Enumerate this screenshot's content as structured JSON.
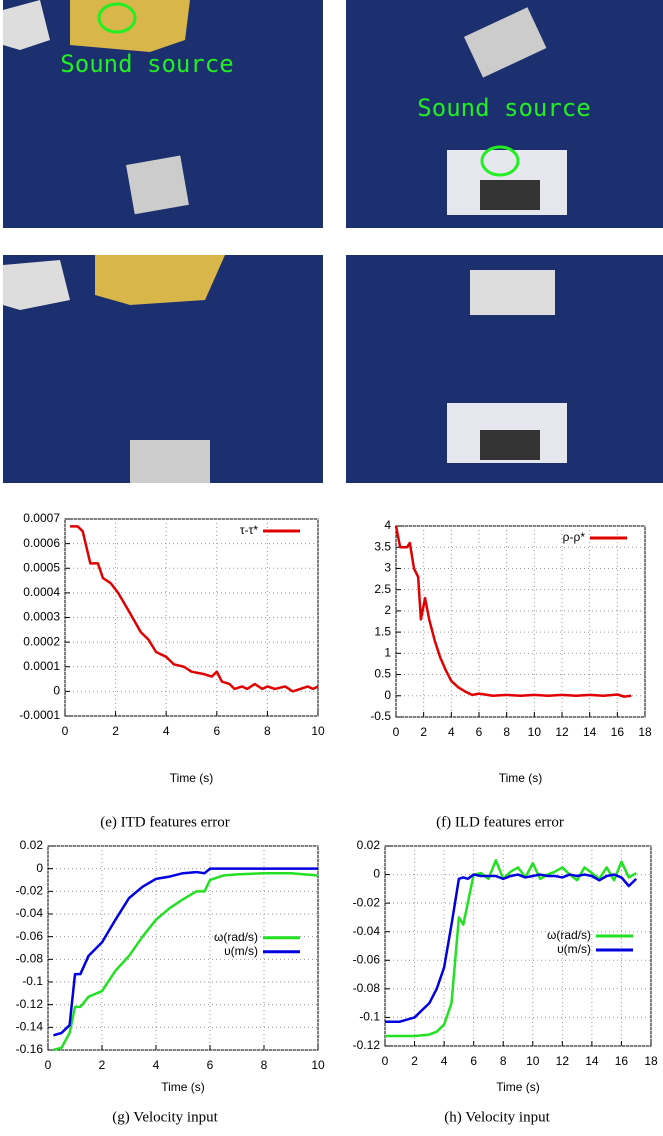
{
  "photo_labels": [
    "Sound source",
    "Sound source"
  ],
  "chart_data": [
    {
      "type": "line",
      "caption": "(e) ITD features error",
      "xlabel": "Time (s)",
      "legend": "upper right",
      "grid": true,
      "xlim": [
        0,
        10
      ],
      "ylim": [
        -0.0001,
        0.0007
      ],
      "xticks": [
        0,
        2,
        4,
        6,
        8,
        10
      ],
      "yticks": [
        -0.0001,
        0,
        0.0001,
        0.0002,
        0.0003,
        0.0004,
        0.0005,
        0.0006,
        0.0007
      ],
      "x": [
        0.2,
        0.5,
        0.7,
        1.0,
        1.3,
        1.5,
        1.8,
        2.1,
        2.5,
        3.0,
        3.3,
        3.6,
        4.0,
        4.3,
        4.7,
        5.0,
        5.5,
        5.8,
        6.0,
        6.2,
        6.5,
        6.7,
        7.0,
        7.2,
        7.5,
        7.8,
        8.0,
        8.3,
        8.7,
        9.0,
        9.3,
        9.6,
        9.8,
        10
      ],
      "series": [
        {
          "name": "τ-τ*",
          "color": "#e00000",
          "values": [
            0.00067,
            0.00067,
            0.00065,
            0.00052,
            0.00052,
            0.00046,
            0.00044,
            0.0004,
            0.00033,
            0.00024,
            0.00021,
            0.00016,
            0.00014,
            0.00011,
            0.0001,
            8e-05,
            7e-05,
            6e-05,
            8e-05,
            4e-05,
            3e-05,
            1e-05,
            2e-05,
            1e-05,
            3e-05,
            1e-05,
            2e-05,
            1e-05,
            2e-05,
            0,
            1e-05,
            2e-05,
            1e-05,
            2e-05
          ]
        }
      ]
    },
    {
      "type": "line",
      "caption": "(f) ILD features error",
      "xlabel": "Time (s)",
      "legend": "upper right",
      "grid": true,
      "xlim": [
        0,
        18
      ],
      "ylim": [
        -0.5,
        4
      ],
      "xticks": [
        0,
        2,
        4,
        6,
        8,
        10,
        12,
        14,
        16,
        18
      ],
      "yticks": [
        -0.5,
        0,
        0.5,
        1,
        1.5,
        2,
        2.5,
        3,
        3.5,
        4
      ],
      "x": [
        0,
        0.3,
        0.8,
        1.0,
        1.3,
        1.6,
        1.8,
        2.1,
        2.4,
        2.8,
        3.2,
        3.6,
        4,
        4.5,
        5,
        5.5,
        6,
        7,
        8,
        9,
        10,
        11,
        12,
        13,
        14,
        15,
        16,
        16.5,
        17
      ],
      "series": [
        {
          "name": "ρ-ρ*",
          "color": "#e00000",
          "values": [
            4,
            3.5,
            3.5,
            3.6,
            3.0,
            2.8,
            1.8,
            2.3,
            1.8,
            1.3,
            0.9,
            0.6,
            0.35,
            0.2,
            0.1,
            0.02,
            0.05,
            0,
            0.02,
            0,
            0.02,
            0,
            0.02,
            0,
            0.02,
            0,
            0.03,
            -0.02,
            0
          ]
        }
      ]
    },
    {
      "type": "line",
      "caption": "(g) Velocity input",
      "xlabel": "Time (s)",
      "legend": "right",
      "grid": true,
      "xlim": [
        0,
        10
      ],
      "ylim": [
        -0.16,
        0.02
      ],
      "xticks": [
        0,
        2,
        4,
        6,
        8,
        10
      ],
      "yticks": [
        -0.16,
        -0.14,
        -0.12,
        -0.1,
        -0.08,
        -0.06,
        -0.04,
        -0.02,
        0,
        0.02
      ],
      "x": [
        0.2,
        0.5,
        0.8,
        1.0,
        1.2,
        1.5,
        2.0,
        2.5,
        3.0,
        3.5,
        4.0,
        4.5,
        5.0,
        5.5,
        5.8,
        6.0,
        6.5,
        7,
        8,
        9,
        10
      ],
      "series": [
        {
          "name": "ω(rad/s)",
          "color": "#22e022",
          "values": [
            -0.16,
            -0.158,
            -0.145,
            -0.122,
            -0.122,
            -0.113,
            -0.108,
            -0.09,
            -0.077,
            -0.06,
            -0.045,
            -0.035,
            -0.027,
            -0.02,
            -0.02,
            -0.01,
            -0.006,
            -0.005,
            -0.004,
            -0.004,
            -0.006
          ]
        },
        {
          "name": "υ(m/s)",
          "color": "#0000e0",
          "values": [
            -0.147,
            -0.145,
            -0.138,
            -0.093,
            -0.093,
            -0.077,
            -0.065,
            -0.045,
            -0.026,
            -0.016,
            -0.009,
            -0.007,
            -0.004,
            -0.003,
            -0.004,
            0,
            0,
            0,
            0,
            0,
            0
          ]
        }
      ]
    },
    {
      "type": "line",
      "caption": "(h) Velocity input",
      "xlabel": "Time (s)",
      "legend": "right",
      "grid": true,
      "xlim": [
        0,
        18
      ],
      "ylim": [
        -0.12,
        0.02
      ],
      "xticks": [
        0,
        2,
        4,
        6,
        8,
        10,
        12,
        14,
        16,
        18
      ],
      "yticks": [
        -0.12,
        -0.1,
        -0.08,
        -0.06,
        -0.04,
        -0.02,
        0,
        0.02
      ],
      "x": [
        0,
        1,
        2,
        3,
        3.5,
        4,
        4.5,
        5,
        5.3,
        5.6,
        6,
        6.5,
        7,
        7.5,
        8,
        8.5,
        9,
        9.5,
        10,
        10.5,
        11,
        11.5,
        12,
        12.5,
        13,
        13.5,
        14,
        14.5,
        15,
        15.5,
        16,
        16.5,
        17
      ],
      "series": [
        {
          "name": "ω(rad/s)",
          "color": "#22e022",
          "values": [
            -0.113,
            -0.113,
            -0.113,
            -0.112,
            -0.11,
            -0.105,
            -0.09,
            -0.03,
            -0.035,
            -0.02,
            0,
            0.001,
            -0.003,
            0.01,
            -0.003,
            0.002,
            0.005,
            -0.002,
            0.008,
            -0.003,
            0,
            0.002,
            0.005,
            0,
            -0.004,
            0.005,
            0.001,
            -0.003,
            0.005,
            -0.004,
            0.009,
            -0.002,
            0.001
          ]
        },
        {
          "name": "υ(m/s)",
          "color": "#0000e0",
          "values": [
            -0.103,
            -0.103,
            -0.1,
            -0.09,
            -0.08,
            -0.065,
            -0.035,
            -0.003,
            -0.002,
            -0.003,
            0,
            -0.001,
            -0.001,
            -0.001,
            -0.003,
            -0.001,
            0,
            -0.002,
            -0.001,
            0,
            -0.001,
            -0.001,
            -0.002,
            0,
            -0.001,
            0,
            -0.001,
            -0.004,
            -0.001,
            0,
            -0.002,
            -0.008,
            -0.003
          ]
        }
      ]
    }
  ]
}
